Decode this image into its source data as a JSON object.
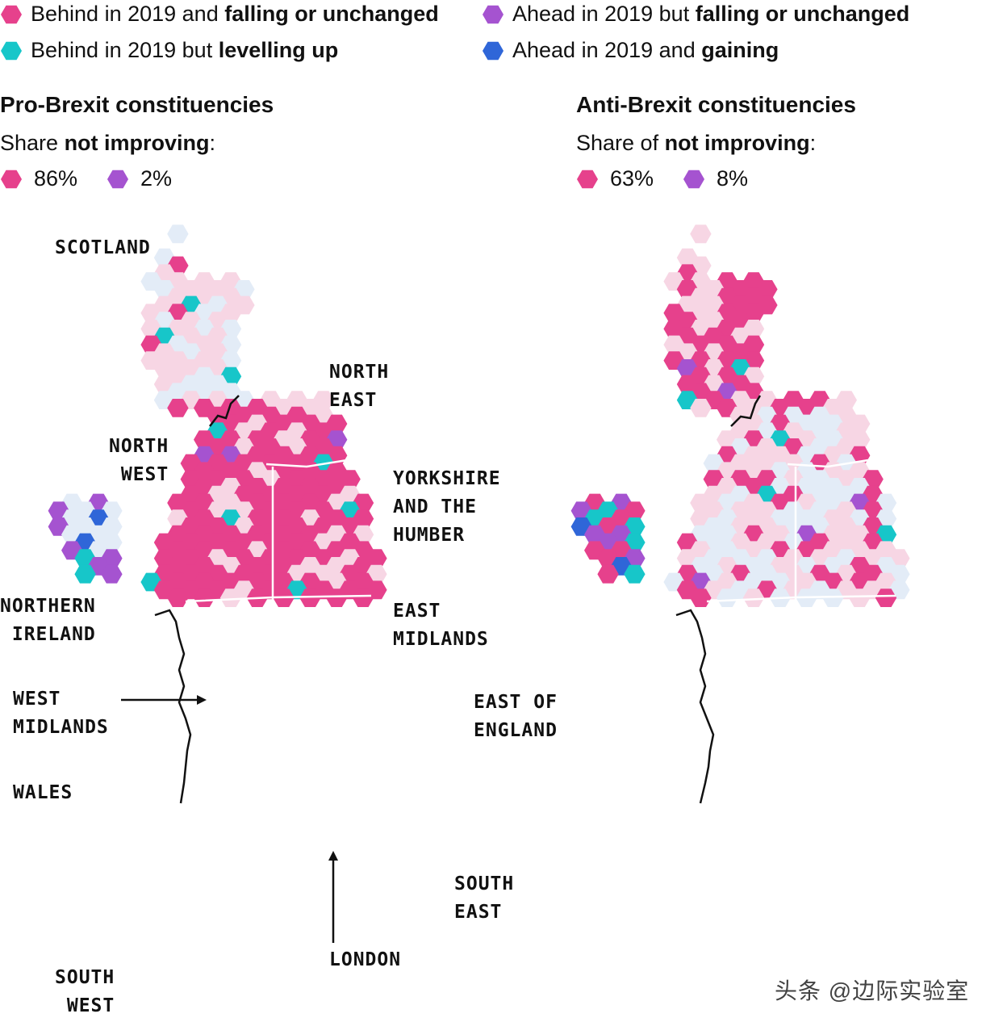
{
  "colors": {
    "behind_falling": "#e6418c",
    "behind_levelling": "#17c6c9",
    "ahead_falling": "#a553d0",
    "ahead_gaining": "#2f66d8",
    "base_light": "#f7d6e4",
    "base_lighter": "#e3ecf7",
    "border": "#111111"
  },
  "legend": [
    {
      "pre": "Behind in 2019 and ",
      "bold": "falling or unchanged",
      "color": "#e6418c"
    },
    {
      "pre": "Behind in 2019 but ",
      "bold": "levelling up",
      "color": "#17c6c9"
    },
    {
      "pre": "Ahead in 2019 but ",
      "bold": "falling or unchanged",
      "color": "#a553d0"
    },
    {
      "pre": "Ahead in 2019 and ",
      "bold": "gaining",
      "color": "#2f66d8"
    }
  ],
  "panels": {
    "pro": {
      "title": "Pro-Brexit constituencies",
      "share_pre": "Share ",
      "share_bold": "not improving",
      "share_post": ":",
      "stat1": "86%",
      "stat2": "2%"
    },
    "anti": {
      "title": "Anti-Brexit constituencies",
      "share_pre": "Share of ",
      "share_bold": "not improving",
      "share_post": ":",
      "stat1": "63%",
      "stat2": "8%"
    }
  },
  "regions": {
    "scotland": "SCOTLAND",
    "north_east": "NORTH\nEAST",
    "north_west": "NORTH\n WEST",
    "yorkshire": "YORKSHIRE\nAND THE\nHUMBER",
    "northern_ireland": "NORTHERN\n IRELAND",
    "east_midlands": "EAST\nMIDLANDS",
    "west_midlands": "WEST\nMIDLANDS",
    "east_of_england": "EAST OF\nENGLAND",
    "wales": "WALES",
    "south_east": "SOUTH\nEAST",
    "london": "LONDON",
    "south_west": "SOUTH\n WEST"
  },
  "watermark": "头条 @边际实验室"
}
